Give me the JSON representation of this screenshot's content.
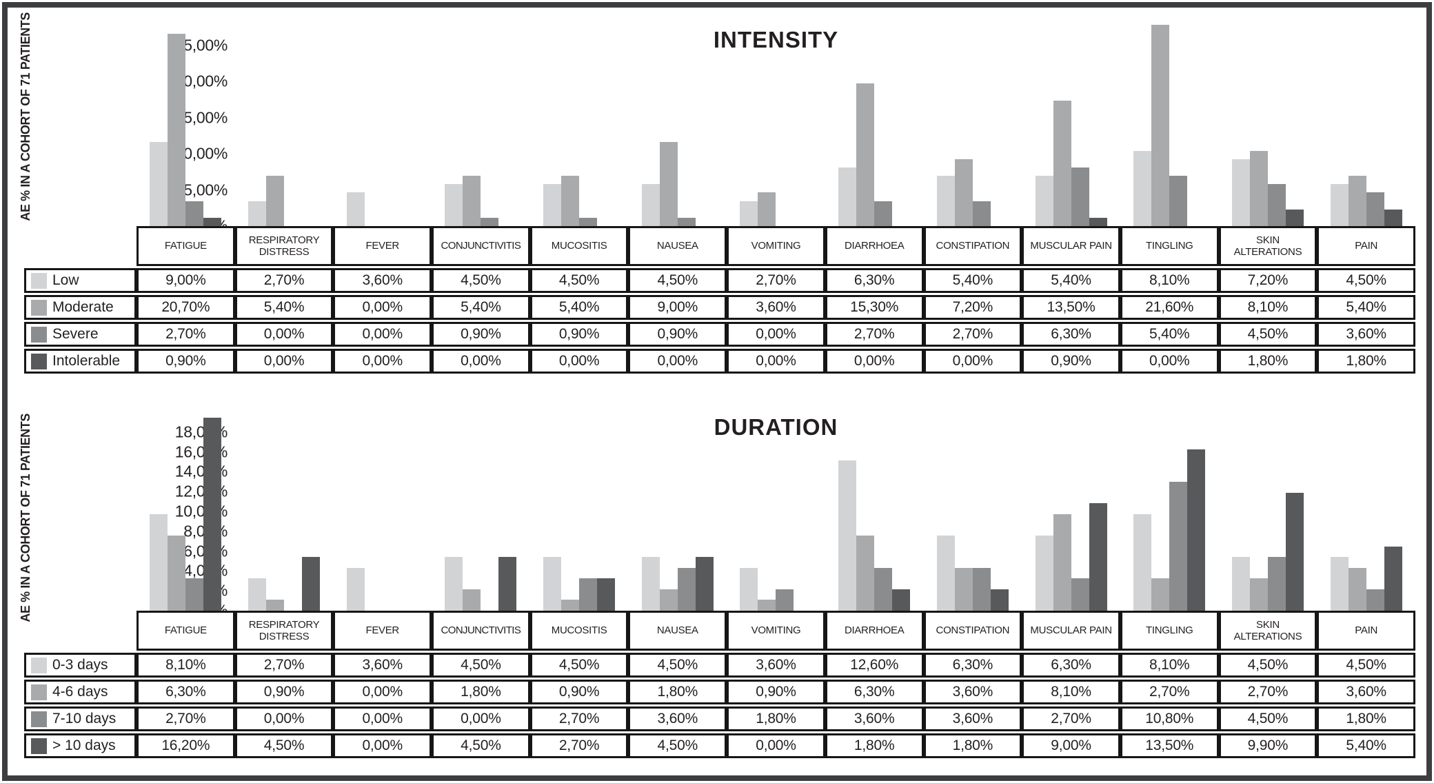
{
  "figure": {
    "frame_color": "#3d3e40",
    "table_border_color": "#161616",
    "text_color": "#231f20",
    "y_axis_label": "AE % IN A COHORT OF 71 PATIENTS"
  },
  "chart_data": [
    {
      "type": "bar",
      "title": "INTENSITY",
      "ylabel": "AE % IN A COHORT OF 71 PATIENTS",
      "xlabel": "",
      "ylim": [
        0,
        25
      ],
      "yticks": [
        0,
        5,
        10,
        15,
        20,
        25
      ],
      "grid": false,
      "legend_position": "table-left",
      "categories": [
        "FATIGUE",
        "RESPIRATORY DISTRESS",
        "FEVER",
        "CONJUNCTIVITIS",
        "MUCOSITIS",
        "NAUSEA",
        "VOMITING",
        "DIARRHOEA",
        "CONSTIPATION",
        "MUSCULAR PAIN",
        "TINGLING",
        "SKIN ALTERATIONS",
        "PAIN"
      ],
      "series": [
        {
          "name": "Low",
          "color": "#d2d3d5",
          "values": [
            9.0,
            2.7,
            3.6,
            4.5,
            4.5,
            4.5,
            2.7,
            6.3,
            5.4,
            5.4,
            8.1,
            7.2,
            4.5
          ]
        },
        {
          "name": "Moderate",
          "color": "#a8aaac",
          "values": [
            20.7,
            5.4,
            0.0,
            5.4,
            5.4,
            9.0,
            3.6,
            15.3,
            7.2,
            13.5,
            21.6,
            8.1,
            5.4
          ]
        },
        {
          "name": "Severe",
          "color": "#8a8c8e",
          "values": [
            2.7,
            0.0,
            0.0,
            0.9,
            0.9,
            0.9,
            0.0,
            2.7,
            2.7,
            6.3,
            5.4,
            4.5,
            3.6
          ]
        },
        {
          "name": "Intolerable",
          "color": "#58595b",
          "values": [
            0.9,
            0.0,
            0.0,
            0.0,
            0.0,
            0.0,
            0.0,
            0.0,
            0.0,
            0.9,
            0.0,
            1.8,
            1.8
          ]
        }
      ]
    },
    {
      "type": "bar",
      "title": "DURATION",
      "ylabel": "AE % IN A COHORT OF 71 PATIENTS",
      "xlabel": "",
      "ylim": [
        0,
        18
      ],
      "yticks": [
        0,
        2,
        4,
        6,
        8,
        10,
        12,
        14,
        16,
        18
      ],
      "grid": false,
      "legend_position": "table-left",
      "categories": [
        "FATIGUE",
        "RESPIRATORY DISTRESS",
        "FEVER",
        "CONJUNCTIVITIS",
        "MUCOSITIS",
        "NAUSEA",
        "VOMITING",
        "DIARRHOEA",
        "CONSTIPATION",
        "MUSCULAR PAIN",
        "TINGLING",
        "SKIN ALTERATIONS",
        "PAIN"
      ],
      "series": [
        {
          "name": "0-3 days",
          "color": "#d2d3d5",
          "values": [
            8.1,
            2.7,
            3.6,
            4.5,
            4.5,
            4.5,
            3.6,
            12.6,
            6.3,
            6.3,
            8.1,
            4.5,
            4.5
          ]
        },
        {
          "name": "4-6 days",
          "color": "#a8aaac",
          "values": [
            6.3,
            0.9,
            0.0,
            1.8,
            0.9,
            1.8,
            0.9,
            6.3,
            3.6,
            8.1,
            2.7,
            2.7,
            3.6
          ]
        },
        {
          "name": "7-10 days",
          "color": "#8a8c8e",
          "values": [
            2.7,
            0.0,
            0.0,
            0.0,
            2.7,
            3.6,
            1.8,
            3.6,
            3.6,
            2.7,
            10.8,
            4.5,
            1.8
          ]
        },
        {
          "name": "> 10 days",
          "color": "#58595b",
          "values": [
            16.2,
            4.5,
            0.0,
            4.5,
            2.7,
            4.5,
            0.0,
            1.8,
            1.8,
            9.0,
            13.5,
            9.9,
            5.4
          ]
        }
      ]
    }
  ],
  "number_format": {
    "decimal_separator": ",",
    "suffix": "%",
    "decimals": 2
  }
}
